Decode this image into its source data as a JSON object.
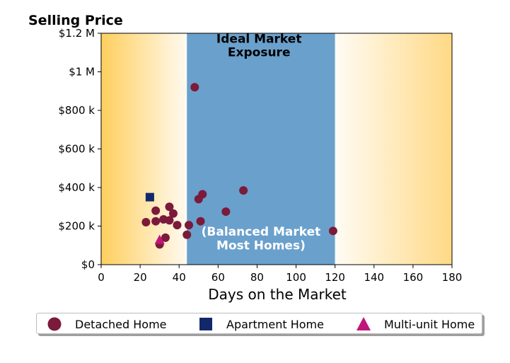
{
  "chart_data": {
    "type": "scatter",
    "title": "Selling Price",
    "xlabel": "Days on the Market",
    "ylabel": "",
    "xlim": [
      0,
      180
    ],
    "ylim": [
      0,
      1200000
    ],
    "x_ticks": [
      0,
      20,
      40,
      60,
      80,
      100,
      120,
      140,
      160,
      180
    ],
    "x_tick_labels": [
      "0",
      "20",
      "40",
      "60",
      "80",
      "100",
      "120",
      "140",
      "160",
      "180"
    ],
    "y_ticks": [
      0,
      200000,
      400000,
      600000,
      800000,
      1000000,
      1200000
    ],
    "y_tick_labels": [
      "$0",
      "$200 k",
      "$400 k",
      "$600 k",
      "$800 k",
      "$1 M",
      "$1.2 M"
    ],
    "grid": false,
    "regions": [
      {
        "x_from": 44,
        "x_to": 120,
        "label": "Ideal Market Exposure",
        "color": "#6aa0cc"
      }
    ],
    "annotations": [
      {
        "text": "Ideal Market",
        "x": 81,
        "y": 1150000,
        "color": "#000000"
      },
      {
        "text": "Exposure",
        "x": 81,
        "y": 1080000,
        "color": "#000000"
      },
      {
        "text": "(Balanced Market",
        "x": 82,
        "y": 150000,
        "color": "#ffffff"
      },
      {
        "text": "Most Homes)",
        "x": 82,
        "y": 78000,
        "color": "#ffffff"
      }
    ],
    "legend_position": "bottom",
    "series": [
      {
        "name": "Detached Home",
        "marker": "circle",
        "color": "#7b1a3a",
        "points": [
          [
            48,
            920000
          ],
          [
            23,
            220000
          ],
          [
            28,
            280000
          ],
          [
            28,
            225000
          ],
          [
            30,
            105000
          ],
          [
            32,
            235000
          ],
          [
            33,
            140000
          ],
          [
            35,
            300000
          ],
          [
            35,
            230000
          ],
          [
            37,
            265000
          ],
          [
            39,
            205000
          ],
          [
            44,
            155000
          ],
          [
            45,
            205000
          ],
          [
            50,
            340000
          ],
          [
            51,
            225000
          ],
          [
            52,
            365000
          ],
          [
            64,
            275000
          ],
          [
            73,
            385000
          ],
          [
            119,
            175000
          ]
        ]
      },
      {
        "name": "Apartment Home",
        "marker": "square",
        "color": "#13286b",
        "points": [
          [
            25,
            350000
          ]
        ]
      },
      {
        "name": "Multi-unit Home",
        "marker": "triangle",
        "color": "#c0167a",
        "points": [
          [
            30,
            130000
          ]
        ]
      }
    ]
  }
}
